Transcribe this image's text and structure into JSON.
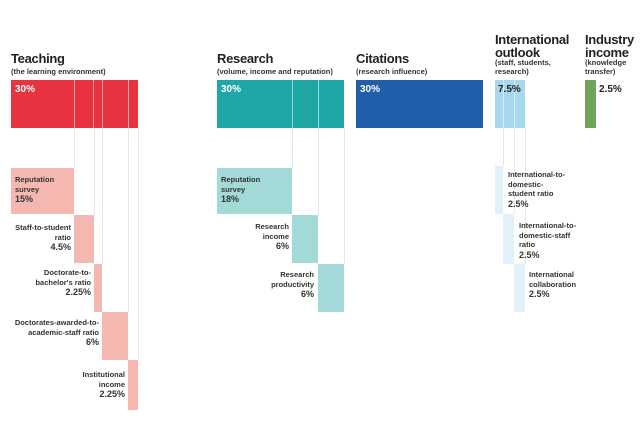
{
  "columns": [
    {
      "id": "teaching",
      "title": "Teaching",
      "subtitle": "(the learning environment)",
      "weight": "30%",
      "color": "#e8323f"
    },
    {
      "id": "research",
      "title": "Research",
      "subtitle": "(volume, income and reputation)",
      "weight": "30%",
      "color": "#1fa7a8"
    },
    {
      "id": "citations",
      "title": "Citations",
      "subtitle": "(research influence)",
      "weight": "30%",
      "color": "#1f5ea8"
    },
    {
      "id": "international",
      "title": "International outlook",
      "subtitle": "(staff, students, research)",
      "weight": "7.5%",
      "color": "#a7d8ee"
    },
    {
      "id": "industry",
      "title": "Industry income",
      "subtitle": "(knowledge transfer)",
      "weight": "2.5%",
      "color": "#6fa25a"
    }
  ],
  "teaching_items": [
    {
      "label": "Reputation survey",
      "weight": "15%"
    },
    {
      "label": "Staff-to-student ratio",
      "weight": "4.5%"
    },
    {
      "label": "Doctorate-to-bachelor's ratio",
      "weight": "2.25%"
    },
    {
      "label": "Doctorates-awarded-to-academic-staff ratio",
      "weight": "6%"
    },
    {
      "label": "Institutional income",
      "weight": "2.25%"
    }
  ],
  "research_items": [
    {
      "label": "Reputation survey",
      "weight": "18%"
    },
    {
      "label": "Research income",
      "weight": "6%"
    },
    {
      "label": "Research productivity",
      "weight": "6%"
    }
  ],
  "international_items": [
    {
      "label": "International-to-domestic-student ratio",
      "weight": "2.5%"
    },
    {
      "label": "International-to-domestic-staff ratio",
      "weight": "2.5%"
    },
    {
      "label": "International collaboration",
      "weight": "2.5%"
    }
  ]
}
